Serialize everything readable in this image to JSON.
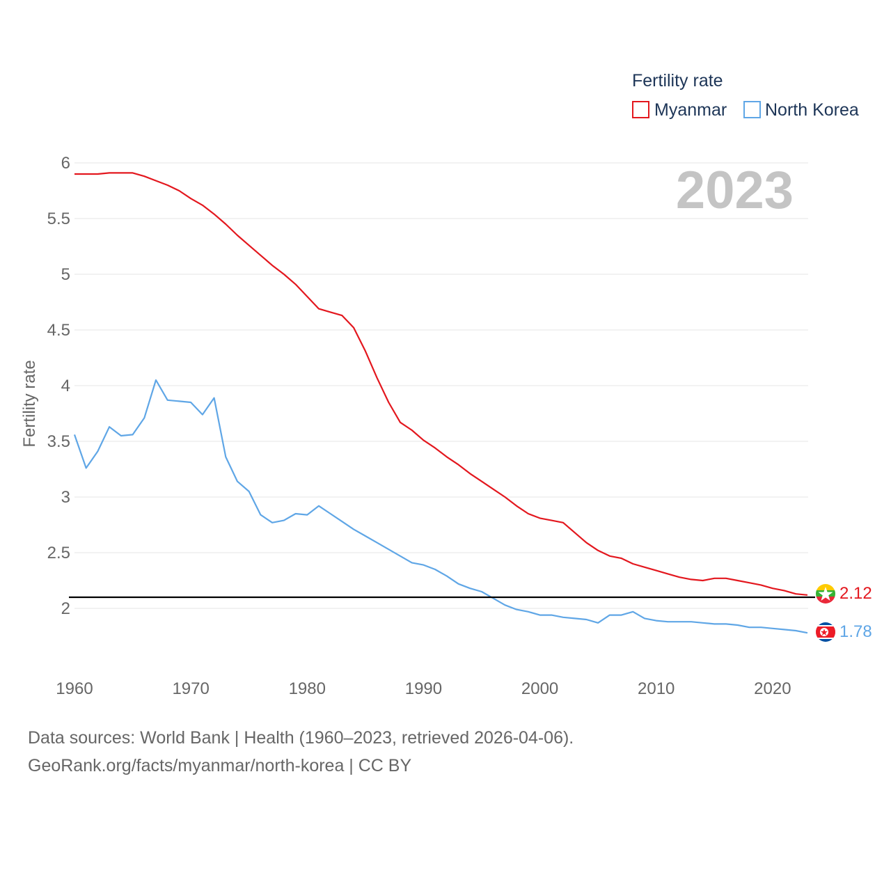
{
  "legend": {
    "title": "Fertility rate",
    "items": [
      {
        "label": "Myanmar",
        "color": "#e3171e"
      },
      {
        "label": "North Korea",
        "color": "#5fa6e6"
      }
    ]
  },
  "year_label": "2023",
  "footer": {
    "line1": "Data sources: World Bank | Health (1960–2023, retrieved 2026-04-06).",
    "line2": "GeoRank.org/facts/myanmar/north-korea | CC BY"
  },
  "chart_data": {
    "type": "line",
    "title": "Fertility rate",
    "xlabel": "",
    "ylabel": "Fertility rate",
    "xlim": [
      1960,
      2023
    ],
    "ylim": [
      1.6,
      6.1
    ],
    "x_ticks": [
      1960,
      1970,
      1980,
      1990,
      2000,
      2010,
      2020
    ],
    "y_ticks": [
      2,
      2.5,
      3,
      3.5,
      4,
      4.5,
      5,
      5.5,
      6
    ],
    "y_tick_labels": [
      "2",
      "2.5",
      "3",
      "3.5",
      "4",
      "4.5",
      "5",
      "5.5",
      "6"
    ],
    "reference_line": {
      "y": 2.1,
      "color": "#000000"
    },
    "grid": true,
    "legend_position": "top-right",
    "x": [
      1960,
      1961,
      1962,
      1963,
      1964,
      1965,
      1966,
      1967,
      1968,
      1969,
      1970,
      1971,
      1972,
      1973,
      1974,
      1975,
      1976,
      1977,
      1978,
      1979,
      1980,
      1981,
      1982,
      1983,
      1984,
      1985,
      1986,
      1987,
      1988,
      1989,
      1990,
      1991,
      1992,
      1993,
      1994,
      1995,
      1996,
      1997,
      1998,
      1999,
      2000,
      2001,
      2002,
      2003,
      2004,
      2005,
      2006,
      2007,
      2008,
      2009,
      2010,
      2011,
      2012,
      2013,
      2014,
      2015,
      2016,
      2017,
      2018,
      2019,
      2020,
      2021,
      2022,
      2023
    ],
    "series": [
      {
        "name": "Myanmar",
        "color": "#e3171e",
        "end_label": "2.12",
        "values": [
          5.9,
          5.9,
          5.9,
          5.91,
          5.91,
          5.91,
          5.88,
          5.84,
          5.8,
          5.75,
          5.68,
          5.62,
          5.54,
          5.45,
          5.35,
          5.26,
          5.17,
          5.08,
          5.0,
          4.91,
          4.8,
          4.69,
          4.66,
          4.63,
          4.52,
          4.31,
          4.07,
          3.85,
          3.67,
          3.6,
          3.51,
          3.44,
          3.36,
          3.29,
          3.21,
          3.14,
          3.07,
          3.0,
          2.92,
          2.85,
          2.81,
          2.79,
          2.77,
          2.68,
          2.59,
          2.52,
          2.47,
          2.45,
          2.4,
          2.37,
          2.34,
          2.31,
          2.28,
          2.26,
          2.25,
          2.27,
          2.27,
          2.25,
          2.23,
          2.21,
          2.18,
          2.16,
          2.13,
          2.12
        ]
      },
      {
        "name": "North Korea",
        "color": "#5fa6e6",
        "end_label": "1.78",
        "values": [
          3.56,
          3.26,
          3.41,
          3.63,
          3.55,
          3.56,
          3.71,
          4.05,
          3.87,
          3.86,
          3.85,
          3.74,
          3.89,
          3.36,
          3.14,
          3.05,
          2.84,
          2.77,
          2.79,
          2.85,
          2.84,
          2.92,
          2.85,
          2.78,
          2.71,
          2.65,
          2.59,
          2.53,
          2.47,
          2.41,
          2.39,
          2.35,
          2.29,
          2.22,
          2.18,
          2.15,
          2.09,
          2.03,
          1.99,
          1.97,
          1.94,
          1.94,
          1.92,
          1.91,
          1.9,
          1.87,
          1.94,
          1.94,
          1.97,
          1.91,
          1.89,
          1.88,
          1.88,
          1.88,
          1.87,
          1.86,
          1.86,
          1.85,
          1.83,
          1.83,
          1.82,
          1.81,
          1.8,
          1.78
        ]
      }
    ]
  }
}
